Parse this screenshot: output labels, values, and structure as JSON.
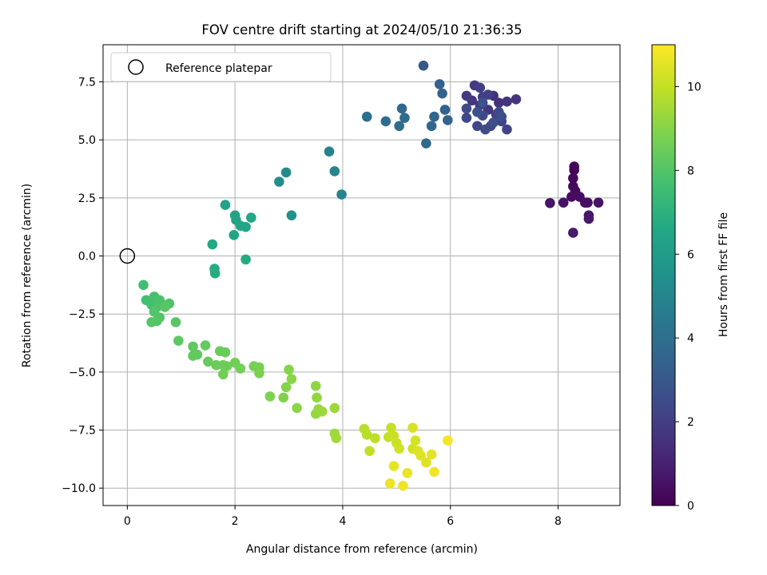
{
  "chart_data": {
    "type": "scatter",
    "title": "FOV centre drift starting at 2024/05/10 21:36:35",
    "xlabel": "Angular distance from reference (arcmin)",
    "ylabel": "Rotation from reference (arcmin)",
    "xlim": [
      -0.45,
      9.15
    ],
    "ylim": [
      -10.75,
      9.1
    ],
    "xticks": [
      0,
      2,
      4,
      6,
      8
    ],
    "xtick_labels": [
      "0",
      "2",
      "4",
      "6",
      "8"
    ],
    "yticks": [
      -10,
      -7.5,
      -5,
      -2.5,
      0,
      2.5,
      5,
      7.5
    ],
    "ytick_labels": [
      "−10.0",
      "−7.5",
      "−5.0",
      "−2.5",
      "0.0",
      "2.5",
      "5.0",
      "7.5"
    ],
    "grid": true,
    "legend": {
      "position": "top-left",
      "entries": [
        "Reference platepar"
      ]
    },
    "reference_point": {
      "x": 0,
      "y": 0,
      "marker": "open-circle"
    },
    "colorbar": {
      "label": "Hours from first FF file",
      "range": [
        0,
        11
      ],
      "ticks": [
        0,
        2,
        4,
        6,
        8,
        10
      ],
      "tick_labels": [
        "0",
        "2",
        "4",
        "6",
        "8",
        "10"
      ],
      "colormap": "viridis"
    },
    "points": [
      [
        8.3,
        3.85,
        0.1
      ],
      [
        8.3,
        3.7,
        0.15
      ],
      [
        8.28,
        3.35,
        0.2
      ],
      [
        8.28,
        3.0,
        0.25
      ],
      [
        8.32,
        2.8,
        0.3
      ],
      [
        8.25,
        2.55,
        0.35
      ],
      [
        8.4,
        2.55,
        0.4
      ],
      [
        8.5,
        2.3,
        0.45
      ],
      [
        8.55,
        2.3,
        0.5
      ],
      [
        8.75,
        2.3,
        0.55
      ],
      [
        8.1,
        2.3,
        0.6
      ],
      [
        7.85,
        2.28,
        0.65
      ],
      [
        8.57,
        1.75,
        0.7
      ],
      [
        8.57,
        1.6,
        0.75
      ],
      [
        8.28,
        1.0,
        0.8
      ],
      [
        6.8,
        6.9,
        1.5
      ],
      [
        6.9,
        6.6,
        1.55
      ],
      [
        7.05,
        6.65,
        1.6
      ],
      [
        7.22,
        6.75,
        1.65
      ],
      [
        6.7,
        6.3,
        1.7
      ],
      [
        6.55,
        6.5,
        1.75
      ],
      [
        6.4,
        6.7,
        1.8
      ],
      [
        6.3,
        6.9,
        1.85
      ],
      [
        6.45,
        7.35,
        1.9
      ],
      [
        6.55,
        7.25,
        1.95
      ],
      [
        6.6,
        6.85,
        2.0
      ],
      [
        6.7,
        6.95,
        2.05
      ],
      [
        6.85,
        6.1,
        2.1
      ],
      [
        6.95,
        5.8,
        2.15
      ],
      [
        7.05,
        5.45,
        2.2
      ],
      [
        6.75,
        5.6,
        2.25
      ],
      [
        6.5,
        5.6,
        2.3
      ],
      [
        6.3,
        5.95,
        2.35
      ],
      [
        6.3,
        6.35,
        2.4
      ],
      [
        6.6,
        6.05,
        2.45
      ],
      [
        6.9,
        6.2,
        2.5
      ],
      [
        6.65,
        5.45,
        2.55
      ],
      [
        6.95,
        6.0,
        2.6
      ],
      [
        6.8,
        5.75,
        2.65
      ],
      [
        6.5,
        6.2,
        2.7
      ],
      [
        6.6,
        6.6,
        2.75
      ],
      [
        5.5,
        8.2,
        3.0
      ],
      [
        5.8,
        7.4,
        3.4
      ],
      [
        5.85,
        7.0,
        3.45
      ],
      [
        5.9,
        6.3,
        3.5
      ],
      [
        5.95,
        5.85,
        3.55
      ],
      [
        5.7,
        6.0,
        3.6
      ],
      [
        5.65,
        5.6,
        3.65
      ],
      [
        5.55,
        4.85,
        3.7
      ],
      [
        5.1,
        6.35,
        3.75
      ],
      [
        5.15,
        5.95,
        3.8
      ],
      [
        5.05,
        5.6,
        3.85
      ],
      [
        4.8,
        5.8,
        3.9
      ],
      [
        4.45,
        6.0,
        3.95
      ],
      [
        3.75,
        4.5,
        4.9
      ],
      [
        3.85,
        3.65,
        4.95
      ],
      [
        3.98,
        2.65,
        5.0
      ],
      [
        2.95,
        3.6,
        5.3
      ],
      [
        2.82,
        3.2,
        5.35
      ],
      [
        3.05,
        1.75,
        5.5
      ],
      [
        1.82,
        2.2,
        6.3
      ],
      [
        2.0,
        1.75,
        6.35
      ],
      [
        2.02,
        1.55,
        6.4
      ],
      [
        2.1,
        1.3,
        6.45
      ],
      [
        2.2,
        1.25,
        6.5
      ],
      [
        2.3,
        1.65,
        6.5
      ],
      [
        1.98,
        0.9,
        6.55
      ],
      [
        1.58,
        0.5,
        6.6
      ],
      [
        2.2,
        -0.15,
        6.65
      ],
      [
        1.62,
        -0.55,
        6.7
      ],
      [
        1.63,
        -0.75,
        6.75
      ],
      [
        0.3,
        -1.25,
        7.6
      ],
      [
        0.35,
        -1.9,
        7.65
      ],
      [
        0.45,
        -2.1,
        7.7
      ],
      [
        0.5,
        -1.75,
        7.75
      ],
      [
        0.55,
        -2.2,
        7.8
      ],
      [
        0.6,
        -1.9,
        7.85
      ],
      [
        0.65,
        -2.1,
        7.9
      ],
      [
        0.78,
        -2.05,
        7.95
      ],
      [
        0.5,
        -2.4,
        8.0
      ],
      [
        0.6,
        -2.65,
        8.0
      ],
      [
        0.55,
        -2.8,
        8.05
      ],
      [
        0.45,
        -2.85,
        8.05
      ],
      [
        0.7,
        -2.2,
        8.1
      ],
      [
        0.9,
        -2.85,
        8.15
      ],
      [
        0.95,
        -3.65,
        8.2
      ],
      [
        1.22,
        -3.9,
        8.25
      ],
      [
        1.3,
        -4.25,
        8.3
      ],
      [
        1.22,
        -4.3,
        8.35
      ],
      [
        1.45,
        -3.85,
        8.35
      ],
      [
        1.5,
        -4.55,
        8.4
      ],
      [
        1.72,
        -4.1,
        8.45
      ],
      [
        1.82,
        -4.15,
        8.45
      ],
      [
        1.65,
        -4.7,
        8.5
      ],
      [
        1.78,
        -4.7,
        8.55
      ],
      [
        1.85,
        -4.75,
        8.55
      ],
      [
        1.78,
        -5.1,
        8.6
      ],
      [
        2.0,
        -4.6,
        8.6
      ],
      [
        2.1,
        -4.85,
        8.65
      ],
      [
        2.35,
        -4.75,
        8.7
      ],
      [
        2.45,
        -4.8,
        8.75
      ],
      [
        2.45,
        -5.05,
        8.8
      ],
      [
        2.65,
        -6.05,
        8.85
      ],
      [
        2.9,
        -6.1,
        8.9
      ],
      [
        2.95,
        -5.65,
        8.95
      ],
      [
        3.0,
        -4.9,
        9.0
      ],
      [
        3.05,
        -5.3,
        9.05
      ],
      [
        3.15,
        -6.55,
        9.1
      ],
      [
        3.5,
        -5.6,
        9.15
      ],
      [
        3.52,
        -6.1,
        9.2
      ],
      [
        3.5,
        -6.8,
        9.25
      ],
      [
        3.55,
        -6.6,
        9.3
      ],
      [
        3.62,
        -6.7,
        9.35
      ],
      [
        3.85,
        -6.55,
        9.35
      ],
      [
        3.85,
        -7.65,
        9.4
      ],
      [
        3.88,
        -7.85,
        9.45
      ],
      [
        4.4,
        -7.45,
        9.8
      ],
      [
        4.45,
        -7.7,
        9.85
      ],
      [
        4.6,
        -7.85,
        9.9
      ],
      [
        4.5,
        -8.4,
        9.95
      ],
      [
        4.85,
        -7.8,
        10.0
      ],
      [
        4.9,
        -7.4,
        10.05
      ],
      [
        4.95,
        -7.75,
        10.1
      ],
      [
        5.0,
        -8.05,
        10.15
      ],
      [
        5.05,
        -8.3,
        10.2
      ],
      [
        5.3,
        -8.3,
        10.25
      ],
      [
        5.35,
        -7.95,
        10.3
      ],
      [
        5.3,
        -7.4,
        10.35
      ],
      [
        5.4,
        -8.4,
        10.4
      ],
      [
        5.45,
        -8.6,
        10.45
      ],
      [
        5.55,
        -8.9,
        10.5
      ],
      [
        5.65,
        -8.55,
        10.55
      ],
      [
        4.95,
        -9.05,
        10.6
      ],
      [
        5.2,
        -9.35,
        10.65
      ],
      [
        4.88,
        -9.8,
        10.7
      ],
      [
        5.12,
        -9.9,
        10.75
      ],
      [
        5.7,
        -9.3,
        10.8
      ],
      [
        5.95,
        -7.95,
        10.85
      ]
    ]
  }
}
